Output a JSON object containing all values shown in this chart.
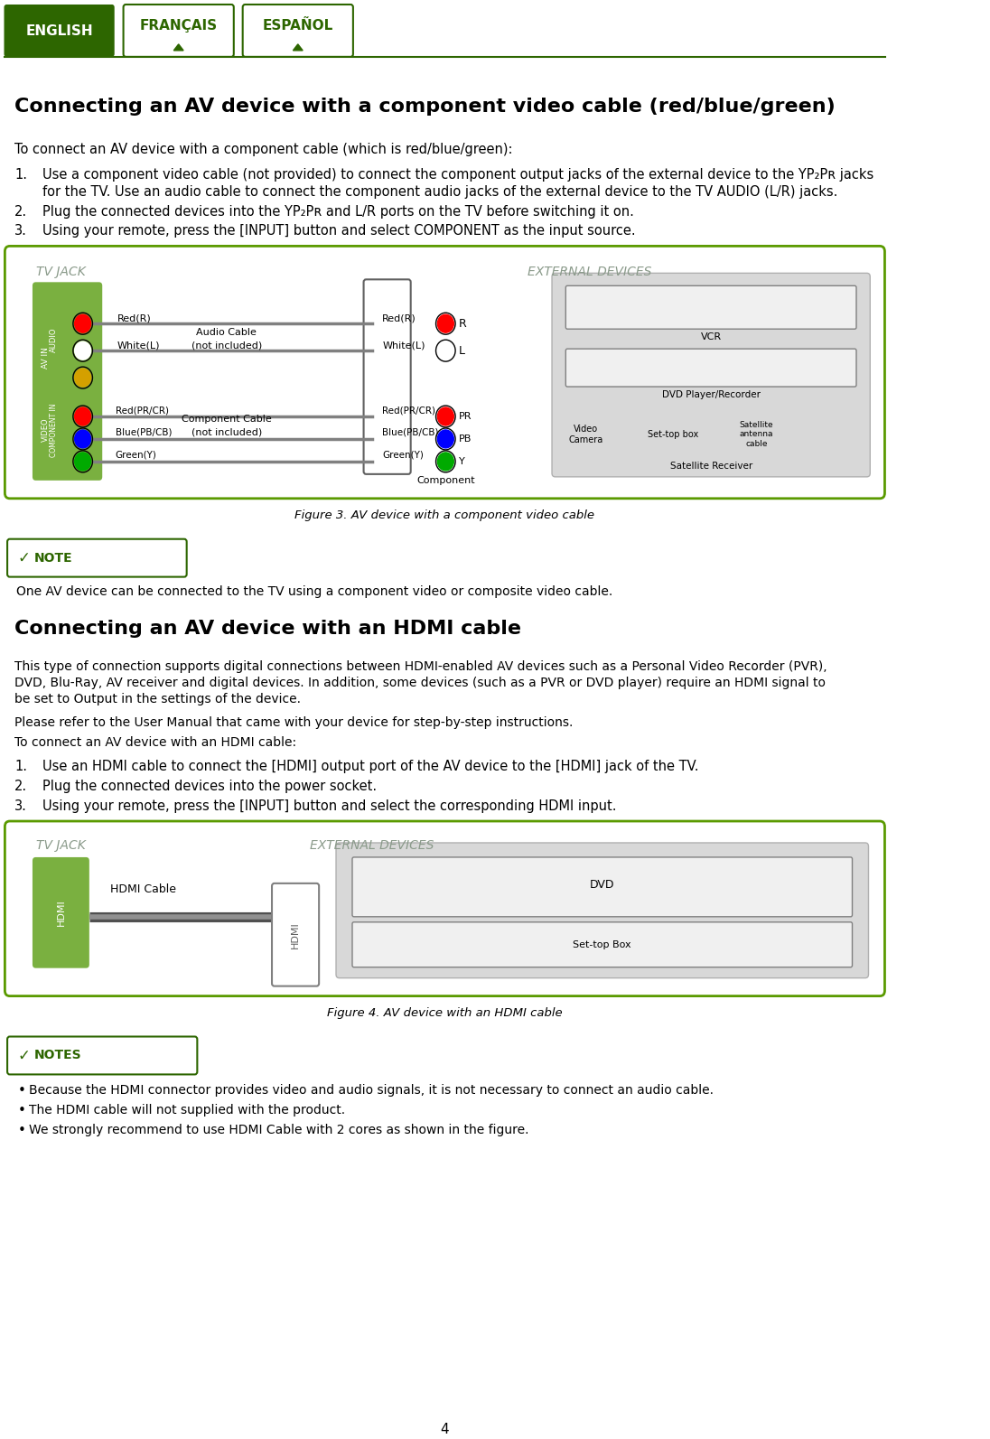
{
  "page_bg": "#ffffff",
  "green_dark": "#2d6a00",
  "tab_green_fill": "#2d6600",
  "diagram_border": "#5a9a00",
  "page_number": "4",
  "title1": "Connecting an AV device with a component video cable (red/blue/green)",
  "subtitle1": "To connect an AV device with a component cable (which is red/blue/green):",
  "step1a": "Use a component video cable (not provided) to connect the component output jacks of the external device to the YP₂Pʀ jacks",
  "step1b": "for the TV. Use an audio cable to connect the component audio jacks of the external device to the TV AUDIO (L/R) jacks.",
  "step2": "Plug the connected devices into the YP₂Pʀ and L/R ports on the TV before switching it on.",
  "step3": "Using your remote, press the [INPUT] button and select COMPONENT as the input source.",
  "fig1_caption": "Figure 3. AV device with a component video cable",
  "note1_text": "One AV device can be connected to the TV using a component video or composite video cable.",
  "title2": "Connecting an AV device with an HDMI cable",
  "para2a1": "This type of connection supports digital connections between HDMI-enabled AV devices such as a Personal Video Recorder (PVR),",
  "para2a2": "DVD, Blu-Ray, AV receiver and digital devices. In addition, some devices (such as a PVR or DVD player) require an HDMI signal to",
  "para2a3": "be set to Output in the settings of the device.",
  "para2b": "Please refer to the User Manual that came with your device for step-by-step instructions.",
  "para2c": "To connect an AV device with an HDMI cable:",
  "hdmi_step1": "Use an HDMI cable to connect the [HDMI] output port of the AV device to the [HDMI] jack of the TV.",
  "hdmi_step2": "Plug the connected devices into the power socket.",
  "hdmi_step3": "Using your remote, press the [INPUT] button and select the corresponding HDMI input.",
  "fig2_caption": "Figure 4. AV device with an HDMI cable",
  "notes2_title": "NOTES",
  "note2a": "Because the HDMI connector provides video and audio signals, it is not necessary to connect an audio cable.",
  "note2b": "The HDMI cable will not supplied with the product.",
  "note2c": "We strongly recommend to use HDMI Cable with 2 cores as shown in the figure.",
  "tabs": [
    "ENGLISH",
    "FRANÇAIS",
    "ESPAÑOL"
  ],
  "label_red_r": "Red(R)",
  "label_white_l": "White(L)",
  "label_red_pr": "Red(PR/CR)",
  "label_blue_pb": "Blue(PB/CB)",
  "label_green_y": "Green(Y)",
  "label_audio_cable": "Audio Cable",
  "label_not_included": "(not included)",
  "label_component_cable": "Component Cable",
  "label_tv_jack": "TV JACK",
  "label_ext_dev": "EXTERNAL DEVICES",
  "label_vcr": "VCR",
  "label_dvd": "DVD Player/Recorder",
  "label_video_camera": "Video\nCamera",
  "label_settop": "Set-top box",
  "label_satellite": "Satellite\nantenna\ncable",
  "label_sat_receiver": "Satellite Receiver",
  "label_component": "Component",
  "label_hdmi_cable": "HDMI Cable",
  "label_dvd2": "DVD",
  "label_settop2": "Set-top Box",
  "label_R": "R",
  "label_L": "L",
  "label_PR": "PR",
  "label_PB": "PB",
  "label_Y": "Y",
  "label_NOTE": "NOTE",
  "label_AVIN": "AV IN",
  "label_AUDIO": "AUDIO",
  "label_VIDEO": "VIDEO",
  "label_COMPIN": "COMPONENT IN",
  "label_HDMI": "HDMI",
  "green_panel": "#7ab040",
  "gray_ext": "#d8d8d8",
  "gray_ext_border": "#b0b0b0",
  "device_fill": "#f0f0f0",
  "device_border": "#808080"
}
